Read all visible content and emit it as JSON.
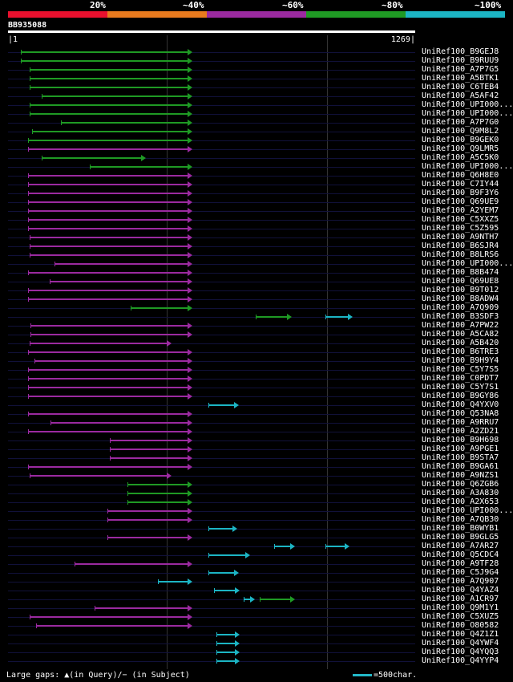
{
  "legend": {
    "colors": [
      "#e8102e",
      "#e87a1e",
      "#9b2aa0",
      "#1f9a24",
      "#1cb5c4"
    ],
    "labels": [
      "20%",
      "~40%",
      "~60%",
      "~80%",
      "~100%"
    ]
  },
  "query": {
    "id": "BB935088",
    "start": "1",
    "end": "1269"
  },
  "hits": [
    {
      "label": "UniRef100_B9GEJ8",
      "color": "green",
      "start": 26,
      "end": 240
    },
    {
      "label": "UniRef100_B9RUU9",
      "color": "green",
      "start": 26,
      "end": 240
    },
    {
      "label": "UniRef100_A7P7G5",
      "color": "green",
      "start": 37,
      "end": 240
    },
    {
      "label": "UniRef100_A5BTK1",
      "color": "green",
      "start": 37,
      "end": 240
    },
    {
      "label": "UniRef100_C6TEB4",
      "color": "green",
      "start": 37,
      "end": 240
    },
    {
      "label": "UniRef100_A5AF42",
      "color": "green",
      "start": 52,
      "end": 240
    },
    {
      "label": "UniRef100_UPI000...",
      "color": "green",
      "start": 37,
      "end": 240
    },
    {
      "label": "UniRef100_UPI000...",
      "color": "green",
      "start": 37,
      "end": 240
    },
    {
      "label": "UniRef100_A7P7G0",
      "color": "green",
      "start": 76,
      "end": 240
    },
    {
      "label": "UniRef100_Q9M8L2",
      "color": "green",
      "start": 40,
      "end": 240
    },
    {
      "label": "UniRef100_B9GEK0",
      "color": "green",
      "start": 35,
      "end": 240
    },
    {
      "label": "UniRef100_Q9LMR5",
      "color": "purple",
      "start": 35,
      "end": 240
    },
    {
      "label": "UniRef100_A5C5K0",
      "color": "green",
      "start": 52,
      "end": 182
    },
    {
      "label": "UniRef100_UPI000...",
      "color": "green",
      "start": 112,
      "end": 240
    },
    {
      "label": "UniRef100_Q6H8E0",
      "color": "purple",
      "start": 35,
      "end": 240
    },
    {
      "label": "UniRef100_C7IY44",
      "color": "purple",
      "start": 35,
      "end": 240
    },
    {
      "label": "UniRef100_B9F3Y6",
      "color": "purple",
      "start": 35,
      "end": 240
    },
    {
      "label": "UniRef100_Q69UE9",
      "color": "purple",
      "start": 35,
      "end": 240
    },
    {
      "label": "UniRef100_A2YEM7",
      "color": "purple",
      "start": 35,
      "end": 240
    },
    {
      "label": "UniRef100_C5XXZ5",
      "color": "purple",
      "start": 35,
      "end": 240
    },
    {
      "label": "UniRef100_C5Z595",
      "color": "purple",
      "start": 35,
      "end": 240
    },
    {
      "label": "UniRef100_A9NTH7",
      "color": "purple",
      "start": 37,
      "end": 240
    },
    {
      "label": "UniRef100_B6SJR4",
      "color": "purple",
      "start": 37,
      "end": 240
    },
    {
      "label": "UniRef100_B8LRS6",
      "color": "purple",
      "start": 37,
      "end": 240
    },
    {
      "label": "UniRef100_UPI000...",
      "color": "purple",
      "start": 68,
      "end": 240
    },
    {
      "label": "UniRef100_B8B474",
      "color": "purple",
      "start": 35,
      "end": 240
    },
    {
      "label": "UniRef100_Q69UE8",
      "color": "purple",
      "start": 62,
      "end": 240
    },
    {
      "label": "UniRef100_B9T012",
      "color": "purple",
      "start": 35,
      "end": 240
    },
    {
      "label": "UniRef100_B8ADW4",
      "color": "purple",
      "start": 35,
      "end": 240
    },
    {
      "label": "UniRef100_A7Q909",
      "color": "green",
      "start": 163,
      "end": 240
    },
    {
      "label": "UniRef100_B3SDF3",
      "color": "green",
      "start": 319,
      "end": 364,
      "extra": [
        406,
        440
      ]
    },
    {
      "label": "UniRef100_A7PW22",
      "color": "purple",
      "start": 38,
      "end": 240
    },
    {
      "label": "UniRef100_A5CA82",
      "color": "purple",
      "start": 38,
      "end": 240
    },
    {
      "label": "UniRef100_A5B420",
      "color": "purple",
      "start": 37,
      "end": 214
    },
    {
      "label": "UniRef100_B6TRE3",
      "color": "purple",
      "start": 35,
      "end": 240
    },
    {
      "label": "UniRef100_B9H9Y4",
      "color": "purple",
      "start": 43,
      "end": 240
    },
    {
      "label": "UniRef100_C5Y7S5",
      "color": "purple",
      "start": 35,
      "end": 240
    },
    {
      "label": "UniRef100_C0PDT7",
      "color": "purple",
      "start": 35,
      "end": 240
    },
    {
      "label": "UniRef100_C5Y7S1",
      "color": "purple",
      "start": 35,
      "end": 240
    },
    {
      "label": "UniRef100_B9GY86",
      "color": "purple",
      "start": 35,
      "end": 240
    },
    {
      "label": "UniRef100_Q4YXV0",
      "color": "cyan",
      "start": 260,
      "end": 298
    },
    {
      "label": "UniRef100_Q53NA8",
      "color": "purple",
      "start": 35,
      "end": 240
    },
    {
      "label": "UniRef100_A9RRU7",
      "color": "purple",
      "start": 63,
      "end": 240
    },
    {
      "label": "UniRef100_A2ZD21",
      "color": "purple",
      "start": 35,
      "end": 240
    },
    {
      "label": "UniRef100_B9H698",
      "color": "purple",
      "start": 137,
      "end": 240
    },
    {
      "label": "UniRef100_A9PGE1",
      "color": "purple",
      "start": 137,
      "end": 240
    },
    {
      "label": "UniRef100_B9STA7",
      "color": "purple",
      "start": 137,
      "end": 240
    },
    {
      "label": "UniRef100_B9GA61",
      "color": "purple",
      "start": 35,
      "end": 240
    },
    {
      "label": "UniRef100_A9NZS1",
      "color": "purple",
      "start": 37,
      "end": 214
    },
    {
      "label": "UniRef100_Q6ZGB6",
      "color": "green",
      "start": 159,
      "end": 240
    },
    {
      "label": "UniRef100_A3A830",
      "color": "green",
      "start": 159,
      "end": 240
    },
    {
      "label": "UniRef100_A2X653",
      "color": "green",
      "start": 159,
      "end": 240
    },
    {
      "label": "UniRef100_UPI000...",
      "color": "purple",
      "start": 134,
      "end": 240
    },
    {
      "label": "UniRef100_A7QB30",
      "color": "purple",
      "start": 134,
      "end": 240
    },
    {
      "label": "UniRef100_B0WYB1",
      "color": "cyan",
      "start": 260,
      "end": 296
    },
    {
      "label": "UniRef100_B9GLG5",
      "color": "purple",
      "start": 134,
      "end": 240
    },
    {
      "label": "UniRef100_A7AR27",
      "color": "cyan",
      "start": 342,
      "end": 368,
      "extra": [
        406,
        436
      ]
    },
    {
      "label": "UniRef100_Q5CDC4",
      "color": "cyan",
      "start": 260,
      "end": 312
    },
    {
      "label": "UniRef100_A9TF28",
      "color": "purple",
      "start": 93,
      "end": 240
    },
    {
      "label": "UniRef100_C5J9G4",
      "color": "cyan",
      "start": 260,
      "end": 298
    },
    {
      "label": "UniRef100_A7Q907",
      "color": "cyan",
      "start": 197,
      "end": 240
    },
    {
      "label": "UniRef100_Q4YAZ4",
      "color": "cyan",
      "start": 267,
      "end": 299
    },
    {
      "label": "UniRef100_A1CR97",
      "color": "cyan",
      "start": 304,
      "end": 318,
      "extra2": [
        324,
        368
      ]
    },
    {
      "label": "UniRef100_Q9M1Y1",
      "color": "purple",
      "start": 118,
      "end": 240
    },
    {
      "label": "UniRef100_C5XUZ5",
      "color": "purple",
      "start": 37,
      "end": 240
    },
    {
      "label": "UniRef100_O80582",
      "color": "purple",
      "start": 45,
      "end": 240
    },
    {
      "label": "UniRef100_Q4Z1Z1",
      "color": "cyan",
      "start": 270,
      "end": 299
    },
    {
      "label": "UniRef100_Q4YWF4",
      "color": "cyan",
      "start": 270,
      "end": 299
    },
    {
      "label": "UniRef100_Q4YQQ3",
      "color": "cyan",
      "start": 270,
      "end": 299
    },
    {
      "label": "UniRef100_Q4YYP4",
      "color": "cyan",
      "start": 270,
      "end": 299
    }
  ],
  "footer": {
    "text": "Large gaps: ▲(in Query)/− (in Subject)"
  },
  "scale": {
    "text": "=500char."
  }
}
